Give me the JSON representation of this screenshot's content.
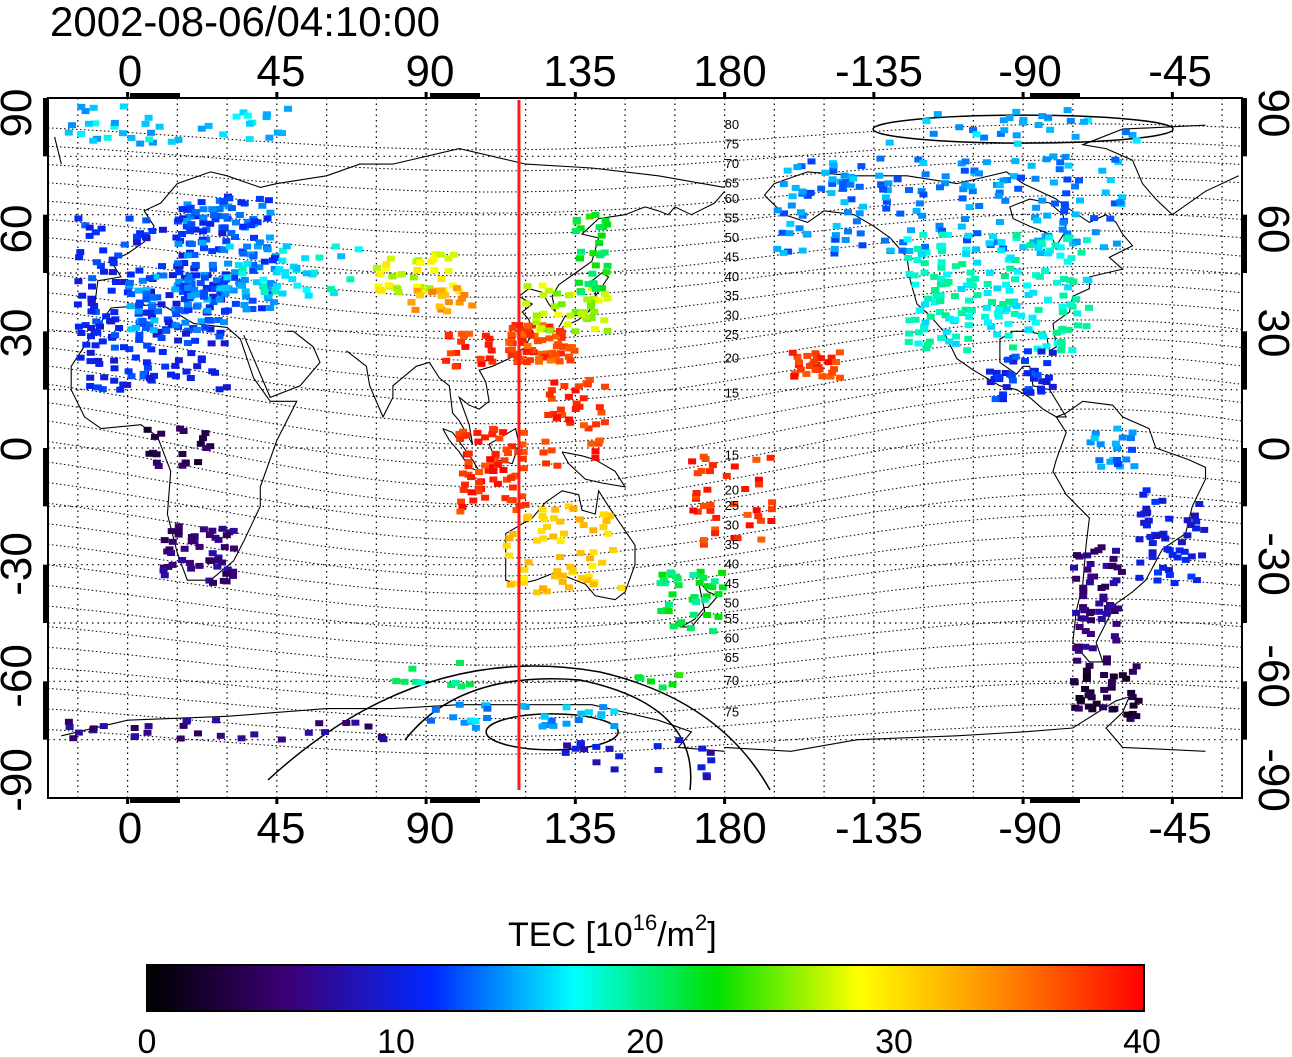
{
  "title": "2002-08-06/04:10:00",
  "map": {
    "lon_ticks_top": [
      "0",
      "45",
      "90",
      "135",
      "180",
      "-135",
      "-90",
      "-45"
    ],
    "lon_ticks_bottom": [
      "0",
      "45",
      "90",
      "135",
      "180",
      "-135",
      "-90",
      "-45"
    ],
    "lat_ticks_left": [
      "90",
      "60",
      "30",
      "0",
      "-30",
      "-60",
      "-90"
    ],
    "lat_ticks_right": [
      "90",
      "60",
      "30",
      "0",
      "-30",
      "-60",
      "-90"
    ],
    "lon_range": [
      -24,
      336
    ],
    "lat_range": [
      -90,
      90
    ],
    "marker_longitude": 118,
    "marker_color": "#ff1a1a",
    "grid": "dotted 15 degree",
    "magnetic_latitude_labels_north": [
      "80",
      "75",
      "70",
      "65",
      "60",
      "55",
      "50",
      "45",
      "40",
      "35",
      "30",
      "25",
      "20",
      "15"
    ],
    "magnetic_latitude_labels_south": [
      "15",
      "20",
      "25",
      "30",
      "35",
      "40",
      "45",
      "50",
      "55",
      "60",
      "65",
      "70",
      "75"
    ]
  },
  "colorbar": {
    "label_main": "TEC  [10",
    "label_exp1": "16",
    "label_mid": "/m",
    "label_exp2": "2",
    "label_end": "]",
    "ticks": [
      "0",
      "10",
      "20",
      "30",
      "40"
    ],
    "range": [
      0,
      40
    ],
    "colors": [
      "#000000",
      "#3c0078",
      "#0028ff",
      "#00ffff",
      "#00e000",
      "#ffff00",
      "#ff8800",
      "#ff0000"
    ]
  }
}
